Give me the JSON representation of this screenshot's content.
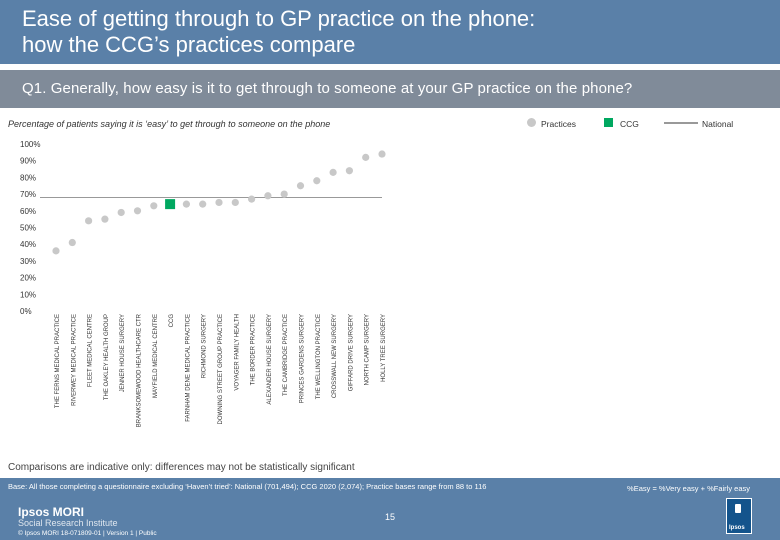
{
  "header": {
    "title_line1": "Ease of getting through to GP practice on the phone:",
    "title_line2": "how the CCG’s practices compare"
  },
  "question": "Q1. Generally, how easy is it to get through to someone at your GP practice on the phone?",
  "caption": "Percentage of patients saying it is ‘easy’ to get through to someone on the phone",
  "legend": {
    "practices": "Practices",
    "ccg": "CCG",
    "national": "National"
  },
  "colors": {
    "header": "#5a80a8",
    "subbar": "#808b99",
    "practice_dot": "#c8c8c8",
    "ccg": "#00a860",
    "national": "#999999"
  },
  "chart_data": {
    "type": "scatter",
    "categories": [
      "THE FERNS MEDICAL PRACTICE",
      "RIVERWEY MEDICAL PRACTICE",
      "FLEET MEDICAL CENTRE",
      "THE OAKLEY HEALTH GROUP",
      "JENNER HOUSE SURGERY",
      "BRANKSOMEWOOD HEALTHCARE CTR",
      "MAYFIELD MEDICAL CENTRE",
      "CCG",
      "FARNHAM DENE MEDICAL PRACTICE",
      "RICHMOND SURGERY",
      "DOWNING STREET GROUP PRACTICE",
      "VOYAGER FAMILY HEALTH",
      "THE BORDER PRACTICE",
      "ALEXANDER HOUSE SURGERY",
      "THE CAMBRIDGE PRACTICE",
      "PRINCES GARDENS SURGERY",
      "THE WELLINGTON PRACTICE",
      "CROSSWALL NEW SURGERY",
      "GIFFARD DRIVE SURGERY",
      "NORTH CAMP SURGERY",
      "HOLLY TREE SURGERY"
    ],
    "values": [
      36,
      41,
      54,
      55,
      59,
      60,
      63,
      64,
      64,
      64,
      65,
      65,
      67,
      69,
      70,
      75,
      78,
      83,
      84,
      92,
      94
    ],
    "highlight_index": 7,
    "national": 68,
    "ylim": [
      0,
      100
    ],
    "yticks": [
      "0%",
      "10%",
      "20%",
      "30%",
      "40%",
      "50%",
      "60%",
      "70%",
      "80%",
      "90%",
      "100%"
    ],
    "grid": false
  },
  "notice": "Comparisons are indicative only: differences may not be statistically significant",
  "footer": {
    "base": "Base: All those completing a questionnaire excluding ‘Haven’t tried’: National (701,494); CCG 2020 (2,074); Practice bases range from 88 to 116",
    "easy_def": "%Easy = %Very easy + %Fairly easy",
    "brand1": "Ipsos MORI",
    "brand2": "Social Research Institute",
    "copyright": "© Ipsos MORI     18-071809-01 | Version 1 | Public",
    "page": "15",
    "logo_text": "Ipsos"
  }
}
